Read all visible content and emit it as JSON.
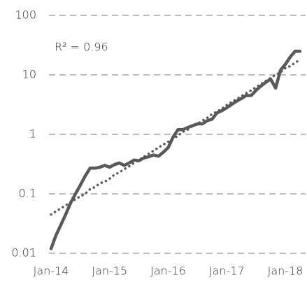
{
  "chart_data": {
    "type": "line",
    "annotations": [
      "R² = 0.96"
    ],
    "categories": [
      "Jan-14",
      null,
      null,
      null,
      null,
      null,
      null,
      null,
      null,
      null,
      null,
      null,
      "Jan-15",
      null,
      null,
      null,
      null,
      null,
      null,
      null,
      null,
      null,
      null,
      null,
      "Jan-16",
      null,
      null,
      null,
      null,
      null,
      null,
      null,
      null,
      null,
      null,
      null,
      "Jan-17",
      null,
      null,
      null,
      null,
      null,
      null,
      null,
      null,
      null,
      null,
      null,
      "Jan-18",
      null,
      null,
      null
    ],
    "series": [
      {
        "color": "#595959",
        "style": "solid",
        "values": [
          0.012,
          0.02,
          0.03,
          0.045,
          0.07,
          0.1,
          0.14,
          0.2,
          0.27,
          0.27,
          0.28,
          0.3,
          0.28,
          0.31,
          0.33,
          0.3,
          0.33,
          0.37,
          0.36,
          0.4,
          0.42,
          0.45,
          0.43,
          0.5,
          0.6,
          0.9,
          1.2,
          1.2,
          1.3,
          1.4,
          1.5,
          1.5,
          1.7,
          1.8,
          2.3,
          2.5,
          2.8,
          3.2,
          3.6,
          4.0,
          4.5,
          4.5,
          5.5,
          6.5,
          7.5,
          8.5,
          6,
          12,
          15,
          20,
          25,
          25
        ]
      },
      {
        "color": "#595959",
        "style": "dotted",
        "values": [
          0.045,
          0.051,
          0.057,
          0.064,
          0.072,
          0.081,
          0.091,
          0.1,
          0.12,
          0.13,
          0.15,
          0.16,
          0.18,
          0.21,
          0.23,
          0.26,
          0.29,
          0.33,
          0.37,
          0.42,
          0.47,
          0.53,
          0.6,
          0.67,
          0.75,
          0.85,
          0.95,
          1.1,
          1.2,
          1.4,
          1.5,
          1.7,
          1.9,
          2.2,
          2.4,
          2.7,
          3.1,
          3.5,
          3.9,
          4.4,
          4.9,
          5.5,
          6.2,
          7.0,
          7.9,
          8.9,
          10,
          11,
          13,
          14,
          16,
          18
        ]
      }
    ],
    "ylim": [
      0.01,
      100
    ],
    "yticks": [
      0.01,
      0.1,
      1,
      10,
      100
    ],
    "log_y": true,
    "grid": true
  }
}
